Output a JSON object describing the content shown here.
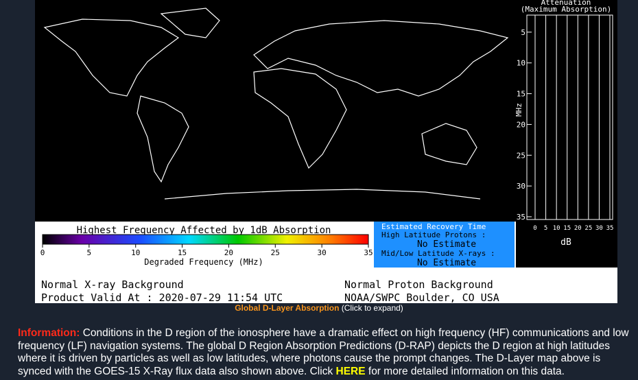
{
  "attenuation": {
    "title": "Attenuation",
    "subtitle": "(Maximum Absorption)",
    "y_label": "MHz",
    "x_label": "dB",
    "yticks": [
      5,
      10,
      15,
      20,
      25,
      30,
      35
    ],
    "xticks": [
      0,
      5,
      10,
      15,
      20,
      25,
      30,
      35
    ]
  },
  "colorbar": {
    "title": "Highest Frequency Affected by 1dB Absorption",
    "ticks": [
      0,
      5,
      10,
      15,
      20,
      25,
      30,
      35
    ],
    "label": "Degraded Frequency (MHz)"
  },
  "recovery": {
    "title": "Estimated Recovery Time",
    "high_label": "High Latitude Protons :",
    "high_value": "No Estimate",
    "mid_label": "Mid/Low Latitude X-rays :",
    "mid_value": "No Estimate"
  },
  "status": {
    "xray": "Normal X-ray Background",
    "valid": "Product Valid At : 2020-07-29 11:54 UTC",
    "proton": "Normal Proton Background",
    "source": "NOAA/SWPC Boulder, CO USA"
  },
  "caption": {
    "title": "Global D-Layer Absorption",
    "action": "(Click to expand)"
  },
  "info": {
    "label": "Information:",
    "text": " Conditions in the D region of the ionosphere have a dramatic effect on high frequency (HF) communications and low frequency (LF) navigation systems. The global D Region Absorption Predictions (D-RAP) depicts the D region at high latitudes where it is driven by particles as well as low latitudes, where photons cause the prompt changes. The D-Layer map above is synced with the GOES-15 X-Ray flux data also shown above. Click ",
    "link": "HERE",
    "tail": " for more detailed information on this data."
  }
}
